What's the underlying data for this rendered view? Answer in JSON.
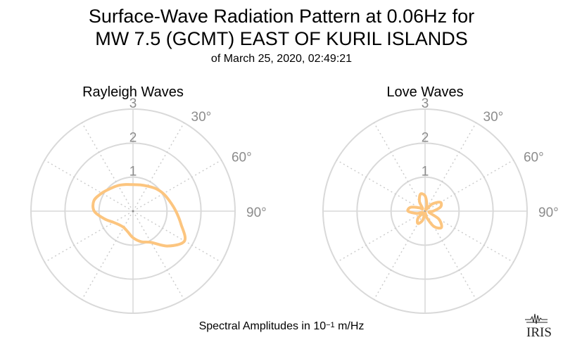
{
  "title_line1": "Surface-Wave Radiation Pattern at 0.06Hz for",
  "title_line2": "MW 7.5 (GCMT) EAST OF KURIL ISLANDS",
  "subtitle": "of March 25, 2020, 02:49:21",
  "footer": {
    "prefix": "Spectral Amplitudes in 10",
    "exponent": "−1",
    "unit": " m/Hz"
  },
  "logo_text": "IRIS",
  "colors": {
    "pattern": "#fcc57f",
    "grid_solid": "#d9d9d9",
    "grid_dotted": "#cccccc",
    "tick_label": "#8c8c8c"
  },
  "chart_data": [
    {
      "type": "polar-line",
      "title": "Rayleigh Waves",
      "radial_ticks": [
        1,
        2,
        3
      ],
      "radial_tick_labels": [
        "1",
        "2",
        "3"
      ],
      "angle_tick_labels": [
        "30°",
        "60°",
        "90°"
      ],
      "r_max": 3,
      "theta_deg": [
        0,
        15,
        30,
        45,
        60,
        75,
        90,
        105,
        120,
        135,
        150,
        165,
        180,
        195,
        210,
        225,
        240,
        255,
        270,
        285,
        300,
        315,
        330,
        345
      ],
      "r": [
        0.78,
        0.8,
        0.85,
        0.94,
        1.03,
        1.12,
        1.26,
        1.46,
        1.75,
        1.45,
        1.06,
        0.93,
        0.78,
        0.62,
        0.55,
        0.57,
        0.66,
        0.87,
        1.14,
        1.19,
        1.06,
        0.94,
        0.87,
        0.81
      ]
    },
    {
      "type": "polar-line",
      "title": "Love Waves",
      "radial_ticks": [
        1,
        2,
        3
      ],
      "radial_tick_labels": [
        "1",
        "2",
        "3"
      ],
      "angle_tick_labels": [
        "30°",
        "60°",
        "90°"
      ],
      "r_max": 3,
      "theta_deg": [
        0,
        15,
        30,
        45,
        60,
        75,
        90,
        105,
        120,
        135,
        150,
        165,
        180,
        195,
        210,
        225,
        240,
        255,
        270,
        285,
        300,
        315,
        330,
        345
      ],
      "r": [
        0.45,
        0.2,
        0.05,
        0.3,
        0.52,
        0.47,
        0.24,
        0.12,
        0.47,
        0.68,
        0.52,
        0.2,
        0.05,
        0.28,
        0.42,
        0.3,
        0.08,
        0.26,
        0.5,
        0.44,
        0.2,
        0.1,
        0.33,
        0.52
      ]
    }
  ]
}
